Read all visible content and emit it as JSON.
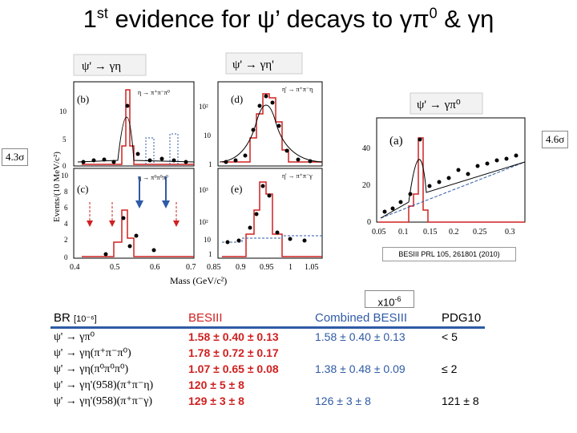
{
  "title": {
    "prefix": "1",
    "sup": "st",
    "text": " evidence for ψ’ decays to γπ",
    "sup2": "0",
    "tail": " & γη"
  },
  "significance_left": "4.3σ",
  "significance_right": "4.6σ",
  "reference": "BESIII PRL 105, 261801 (2010)",
  "scale_label": {
    "base": "x10",
    "exp": "-6"
  },
  "left_figure": {
    "header_left": "ψ' → γη",
    "header_right": "ψ' → γη'",
    "ylabel": "Events/(10 MeV/c²)",
    "xlabel": "Mass (GeV/c²)",
    "panels": [
      {
        "label": "(b)",
        "decay": "η → π⁺π⁻π⁰"
      },
      {
        "label": "(d)",
        "decay": "η' → π⁺π⁻η"
      },
      {
        "label": "(c)",
        "decay": "η → π⁰π⁰π⁰"
      },
      {
        "label": "(e)",
        "decay": "η' → π⁺π⁻γ"
      }
    ],
    "x_ticks_left": [
      "0.4",
      "0.5",
      "0.6",
      "0.7"
    ],
    "x_ticks_right": [
      "0.85",
      "0.9",
      "0.95",
      "1",
      "1.05"
    ],
    "y_ticks_b": [
      "0",
      "5",
      "10"
    ],
    "y_ticks_c": [
      "0",
      "2",
      "4",
      "6",
      "8",
      "10"
    ],
    "y_ticks_d": [
      "1",
      "10",
      "10²"
    ],
    "y_ticks_e": [
      "1",
      "10",
      "10²",
      "10³"
    ]
  },
  "right_figure": {
    "header": "ψ' → γπ⁰",
    "label": "(a)",
    "x_ticks": [
      "0.05",
      "0.1",
      "0.15",
      "0.2",
      "0.25",
      "0.3"
    ],
    "y_ticks": [
      "0",
      "20",
      "40"
    ]
  },
  "table": {
    "headers": {
      "br": "BR",
      "br_unit": "[10⁻⁶]",
      "besiii": "BESIII",
      "combined": "Combined BESIII",
      "pdg": "PDG10"
    },
    "rows": [
      {
        "decay": "ψ' → γπ⁰",
        "besiii": "1.58 ± 0.40 ± 0.13",
        "combined": "1.58 ± 0.40 ± 0.13",
        "pdg": "< 5"
      },
      {
        "decay": "ψ' → γη(π⁺π⁻π⁰)",
        "besiii": "1.78 ± 0.72 ± 0.17",
        "combined": "",
        "pdg": ""
      },
      {
        "decay": "ψ' → γη(π⁰π⁰π⁰)",
        "besiii": "1.07 ± 0.65 ± 0.08",
        "combined": "1.38 ± 0.48 ± 0.09",
        "pdg": "≤ 2"
      },
      {
        "decay": "ψ' → γη'(958)(π⁺π⁻η)",
        "besiii": "120 ± 5 ± 8",
        "combined": "",
        "pdg": ""
      },
      {
        "decay": "ψ' → γη'(958)(π⁺π⁻γ)",
        "besiii": "129 ± 3 ± 8",
        "combined": "126 ± 3 ± 8",
        "pdg": "121 ± 8"
      }
    ]
  }
}
